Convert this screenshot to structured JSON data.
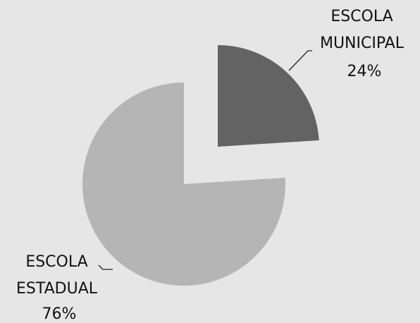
{
  "chart_data": {
    "type": "pie",
    "title": "",
    "exploded": true,
    "start_angle_deg": 0,
    "direction": "clockwise",
    "background_color": "#e6e6e6",
    "leader_lines": true,
    "slices": [
      {
        "label_lines": [
          "ESCOLA",
          "MUNICIPAL",
          "24%"
        ],
        "value": 24,
        "color": "#636363"
      },
      {
        "label_lines": [
          "ESCOLA",
          "ESTADUAL",
          "76%"
        ],
        "value": 76,
        "color": "#b5b5b5"
      }
    ]
  }
}
